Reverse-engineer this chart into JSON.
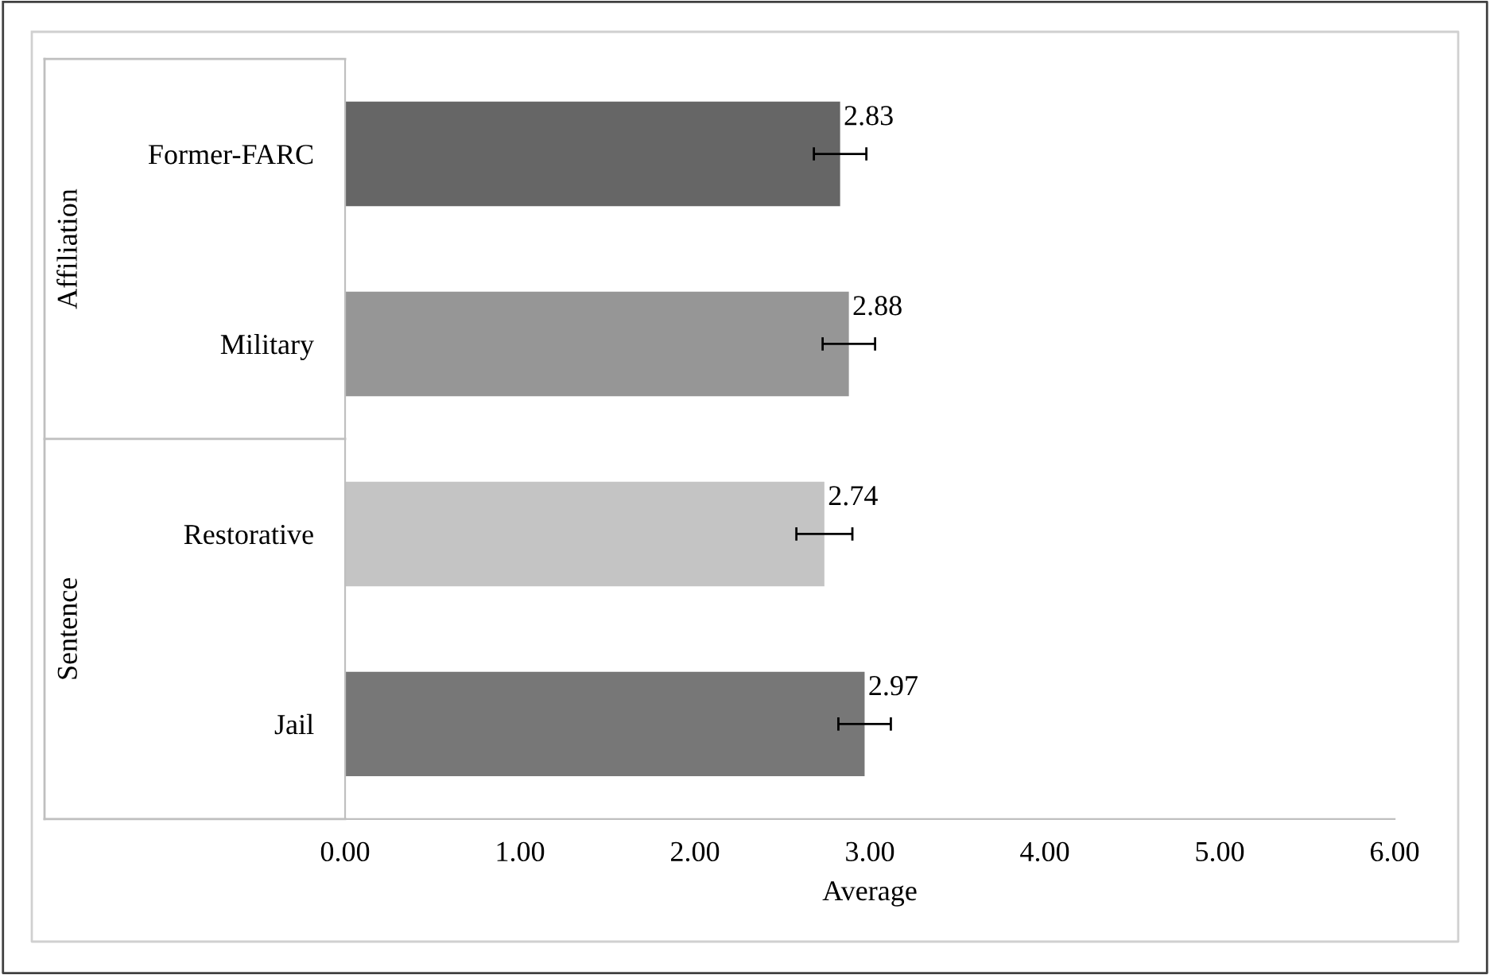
{
  "chart_data": {
    "type": "bar",
    "orientation": "horizontal",
    "xlabel": "Average",
    "categories": [
      "Former-FARC",
      "Military",
      "Restorative",
      "Jail"
    ],
    "values": [
      2.83,
      2.88,
      2.74,
      2.97
    ],
    "colors": [
      "#666666",
      "#969696",
      "#c4c4c4",
      "#777777"
    ],
    "errors": [
      0.15,
      0.15,
      0.16,
      0.15
    ],
    "data_labels": true,
    "xlim": [
      0,
      6
    ],
    "xticks": [
      {
        "value": 0,
        "label": "0.00"
      },
      {
        "value": 1,
        "label": "1.00"
      },
      {
        "value": 2,
        "label": "2.00"
      },
      {
        "value": 3,
        "label": "3.00"
      },
      {
        "value": 4,
        "label": "4.00"
      },
      {
        "value": 5,
        "label": "5.00"
      },
      {
        "value": 6,
        "label": "6.00"
      }
    ],
    "annotations": [
      "Affiliation",
      "Sentence"
    ],
    "grid": false
  }
}
